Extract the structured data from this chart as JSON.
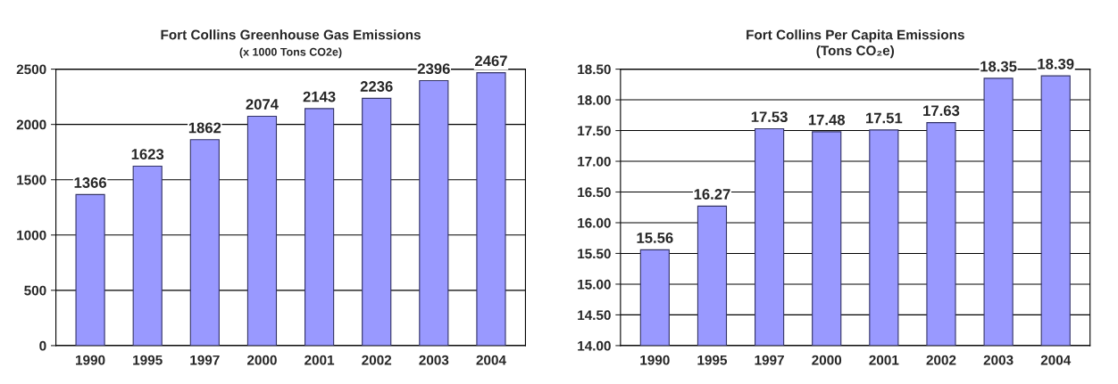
{
  "chart_data": [
    {
      "type": "bar",
      "title": "Fort Collins Greenhouse Gas Emissions",
      "subtitle": "(x 1000 Tons CO2e)",
      "categories": [
        "1990",
        "1995",
        "1997",
        "2000",
        "2001",
        "2002",
        "2003",
        "2004"
      ],
      "values": [
        1366,
        1623,
        1862,
        2074,
        2143,
        2236,
        2396,
        2467
      ],
      "color": "#9999ff",
      "ylim": [
        0,
        2500
      ],
      "yticks": [
        0,
        500,
        1000,
        1500,
        2000,
        2500
      ],
      "grid": "y",
      "data_labels": true
    },
    {
      "type": "bar",
      "title": "Fort Collins Per Capita Emissions",
      "subtitle": "(Tons CO₂e)",
      "categories": [
        "1990",
        "1995",
        "1997",
        "2000",
        "2001",
        "2002",
        "2003",
        "2004"
      ],
      "values": [
        15.56,
        16.27,
        17.53,
        17.48,
        17.51,
        17.63,
        18.35,
        18.39
      ],
      "color": "#9999ff",
      "ylim": [
        14,
        18.5
      ],
      "yticks": [
        {
          "value": 14,
          "label": "14.00"
        },
        {
          "value": 14.5,
          "label": "14.50"
        },
        {
          "value": 15,
          "label": "15.00"
        },
        {
          "value": 15.5,
          "label": "15.50"
        },
        {
          "value": 16,
          "label": "16.00"
        },
        {
          "value": 16.5,
          "label": "16.50"
        },
        {
          "value": 17,
          "label": "17.00"
        },
        {
          "value": 17.5,
          "label": "17.50"
        },
        {
          "value": 18,
          "label": "18.00"
        },
        {
          "value": 18.5,
          "label": "18.50"
        }
      ],
      "grid": "y",
      "value_labels": [
        "15.56",
        "16.27",
        "17.53",
        "17.48",
        "17.51",
        "17.63",
        "18.35",
        "18.39"
      ]
    }
  ]
}
